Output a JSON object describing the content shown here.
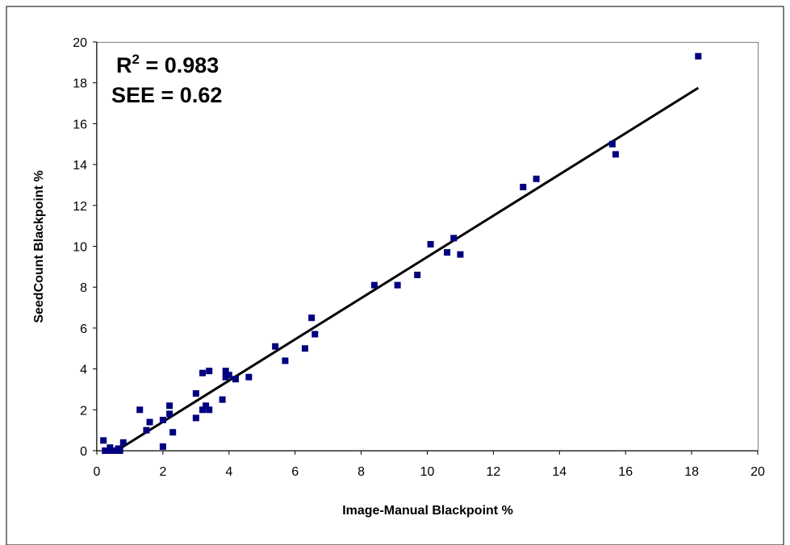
{
  "chart_data": {
    "type": "scatter",
    "xlabel": "Image-Manual Blackpoint %",
    "ylabel": "SeedCount Blackpoint %",
    "xlim": [
      0,
      20
    ],
    "ylim": [
      0,
      20
    ],
    "x_ticks": [
      "0",
      "2",
      "4",
      "6",
      "8",
      "10",
      "12",
      "14",
      "16",
      "18",
      "20"
    ],
    "y_ticks": [
      "0",
      "2",
      "4",
      "6",
      "8",
      "10",
      "12",
      "14",
      "16",
      "18",
      "20"
    ],
    "grid": false,
    "legend": "none",
    "marker_color": "#000080",
    "line_color": "#000000",
    "annotations": {
      "r2_prefix": "R",
      "r2_sup": "2",
      "r2_suffix": " = 0.983",
      "see": "SEE = 0.62"
    },
    "fit_line": {
      "x": [
        0.6,
        18.2
      ],
      "y": [
        0.0,
        17.75
      ]
    },
    "series": [
      {
        "points": [
          {
            "x": 0.2,
            "y": 0.5
          },
          {
            "x": 0.25,
            "y": 0.0
          },
          {
            "x": 0.35,
            "y": 0.0
          },
          {
            "x": 0.4,
            "y": 0.15
          },
          {
            "x": 0.45,
            "y": 0.0
          },
          {
            "x": 0.5,
            "y": 0.0
          },
          {
            "x": 0.6,
            "y": 0.0
          },
          {
            "x": 0.65,
            "y": 0.1
          },
          {
            "x": 0.7,
            "y": 0.0
          },
          {
            "x": 0.8,
            "y": 0.4
          },
          {
            "x": 1.3,
            "y": 2.0
          },
          {
            "x": 1.5,
            "y": 1.0
          },
          {
            "x": 1.6,
            "y": 1.4
          },
          {
            "x": 2.0,
            "y": 1.5
          },
          {
            "x": 2.0,
            "y": 0.2
          },
          {
            "x": 2.2,
            "y": 2.2
          },
          {
            "x": 2.2,
            "y": 1.8
          },
          {
            "x": 2.3,
            "y": 0.9
          },
          {
            "x": 3.0,
            "y": 2.8
          },
          {
            "x": 3.0,
            "y": 1.6
          },
          {
            "x": 3.2,
            "y": 3.8
          },
          {
            "x": 3.2,
            "y": 2.0
          },
          {
            "x": 3.3,
            "y": 2.2
          },
          {
            "x": 3.4,
            "y": 3.9
          },
          {
            "x": 3.4,
            "y": 2.0
          },
          {
            "x": 3.8,
            "y": 2.5
          },
          {
            "x": 3.9,
            "y": 3.9
          },
          {
            "x": 3.9,
            "y": 3.6
          },
          {
            "x": 4.0,
            "y": 3.7
          },
          {
            "x": 4.2,
            "y": 3.5
          },
          {
            "x": 4.6,
            "y": 3.6
          },
          {
            "x": 5.4,
            "y": 5.1
          },
          {
            "x": 5.7,
            "y": 4.4
          },
          {
            "x": 6.3,
            "y": 5.0
          },
          {
            "x": 6.5,
            "y": 6.5
          },
          {
            "x": 6.6,
            "y": 5.7
          },
          {
            "x": 8.4,
            "y": 8.1
          },
          {
            "x": 9.1,
            "y": 8.1
          },
          {
            "x": 9.7,
            "y": 8.6
          },
          {
            "x": 10.1,
            "y": 10.1
          },
          {
            "x": 10.6,
            "y": 9.7
          },
          {
            "x": 10.8,
            "y": 10.4
          },
          {
            "x": 11.0,
            "y": 9.6
          },
          {
            "x": 12.9,
            "y": 12.9
          },
          {
            "x": 13.3,
            "y": 13.3
          },
          {
            "x": 15.6,
            "y": 15.0
          },
          {
            "x": 15.7,
            "y": 14.5
          },
          {
            "x": 18.2,
            "y": 19.3
          }
        ]
      }
    ]
  }
}
